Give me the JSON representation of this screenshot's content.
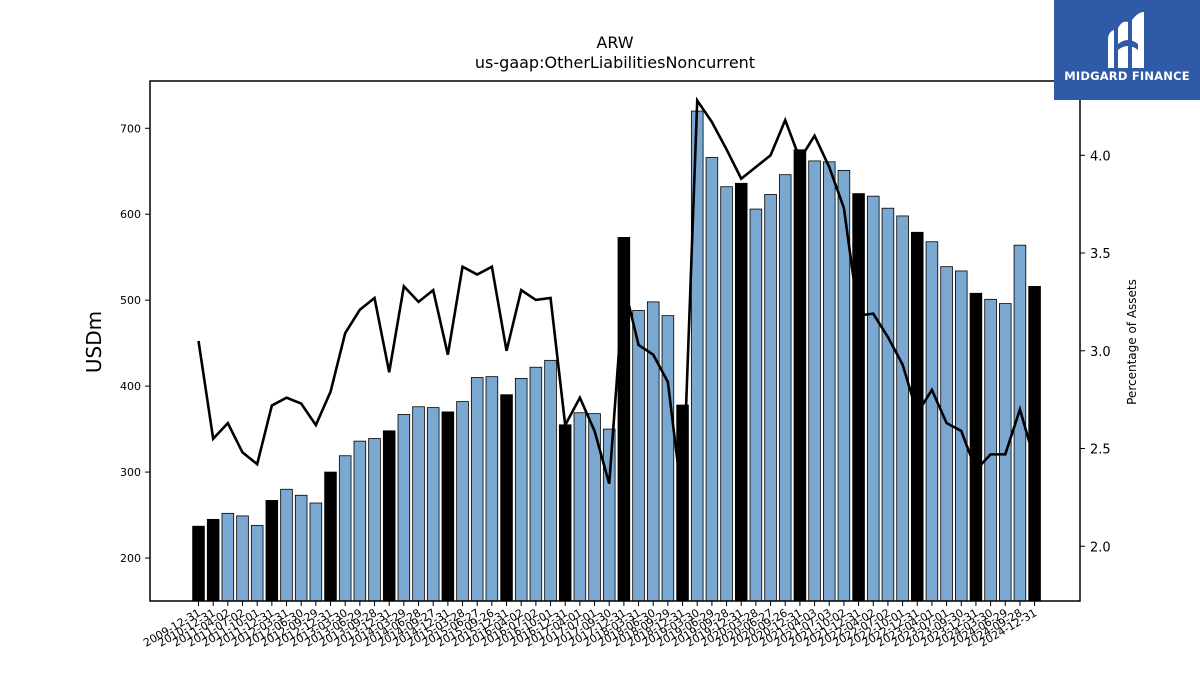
{
  "chart_data": {
    "type": "bar",
    "title": "ARW",
    "subtitle": "us-gaap:OtherLiabilitiesNoncurrent",
    "ylabel": "USDm",
    "y2label": "Percentage of Assets",
    "ylim": [
      150,
      755
    ],
    "y2lim": [
      1.72,
      4.38
    ],
    "yticks": [
      200,
      300,
      400,
      500,
      600,
      700
    ],
    "y2ticks": [
      2.0,
      2.5,
      3.0,
      3.5,
      4.0
    ],
    "grid": false,
    "colors": {
      "bar": "#7aa8d0",
      "bar_q4": "#000000",
      "line": "#000000"
    },
    "categories": [
      "2009-12-31",
      "2010-12-31",
      "2011-04-02",
      "2011-07-02",
      "2011-10-01",
      "2011-12-31",
      "2012-03-31",
      "2012-06-30",
      "2012-09-29",
      "2012-12-31",
      "2013-03-30",
      "2013-06-29",
      "2013-09-28",
      "2013-12-31",
      "2014-03-29",
      "2014-06-28",
      "2014-09-27",
      "2014-12-31",
      "2015-03-28",
      "2015-06-27",
      "2015-09-26",
      "2015-12-31",
      "2016-04-02",
      "2016-07-02",
      "2016-10-01",
      "2016-12-31",
      "2017-04-01",
      "2017-07-01",
      "2017-09-30",
      "2017-12-31",
      "2018-03-31",
      "2018-06-30",
      "2018-09-29",
      "2018-12-31",
      "2019-03-30",
      "2019-06-29",
      "2019-09-28",
      "2019-12-31",
      "2020-03-28",
      "2020-06-27",
      "2020-09-26",
      "2020-12-31",
      "2021-04-03",
      "2021-07-03",
      "2021-10-02",
      "2021-12-31",
      "2022-04-02",
      "2022-07-02",
      "2022-10-01",
      "2022-12-31",
      "2023-04-01",
      "2023-07-01",
      "2023-09-30",
      "2023-12-31",
      "2024-03-30",
      "2024-06-29",
      "2024-09-28",
      "2024-12-31"
    ],
    "series": [
      {
        "type": "bar",
        "axis": "left",
        "values": [
          237,
          245,
          252,
          249,
          238,
          267,
          280,
          273,
          264,
          300,
          319,
          336,
          339,
          348,
          367,
          376,
          375,
          370,
          382,
          410,
          411,
          390,
          409,
          422,
          430,
          355,
          369,
          368,
          350,
          573,
          488,
          498,
          482,
          378,
          720,
          666,
          632,
          636,
          606,
          623,
          646,
          675,
          662,
          661,
          651,
          624,
          621,
          607,
          598,
          579,
          568,
          539,
          534,
          508,
          501,
          496,
          564,
          516
        ],
        "q4_highlight": [
          true,
          true,
          false,
          false,
          false,
          true,
          false,
          false,
          false,
          true,
          false,
          false,
          false,
          true,
          false,
          false,
          false,
          true,
          false,
          false,
          false,
          true,
          false,
          false,
          false,
          true,
          false,
          false,
          false,
          true,
          false,
          false,
          false,
          true,
          false,
          false,
          false,
          true,
          false,
          false,
          false,
          true,
          false,
          false,
          false,
          true,
          false,
          false,
          false,
          true,
          false,
          false,
          false,
          true,
          false,
          false,
          false,
          true
        ]
      },
      {
        "type": "line",
        "axis": "right",
        "values": [
          3.05,
          2.55,
          2.63,
          2.48,
          2.42,
          2.72,
          2.76,
          2.73,
          2.62,
          2.79,
          3.09,
          3.21,
          3.27,
          2.89,
          3.33,
          3.25,
          3.31,
          2.98,
          3.43,
          3.39,
          3.43,
          3.0,
          3.31,
          3.26,
          3.27,
          2.62,
          2.76,
          2.59,
          2.32,
          3.34,
          3.03,
          2.98,
          2.84,
          2.22,
          4.28,
          4.17,
          4.03,
          3.88,
          3.94,
          4.0,
          4.18,
          3.98,
          4.1,
          3.94,
          3.73,
          3.18,
          3.19,
          3.07,
          2.93,
          2.68,
          2.8,
          2.63,
          2.59,
          2.39,
          2.47,
          2.47,
          2.7,
          2.44
        ]
      }
    ]
  },
  "logo": {
    "text": "MIDGARD FINANCE"
  }
}
